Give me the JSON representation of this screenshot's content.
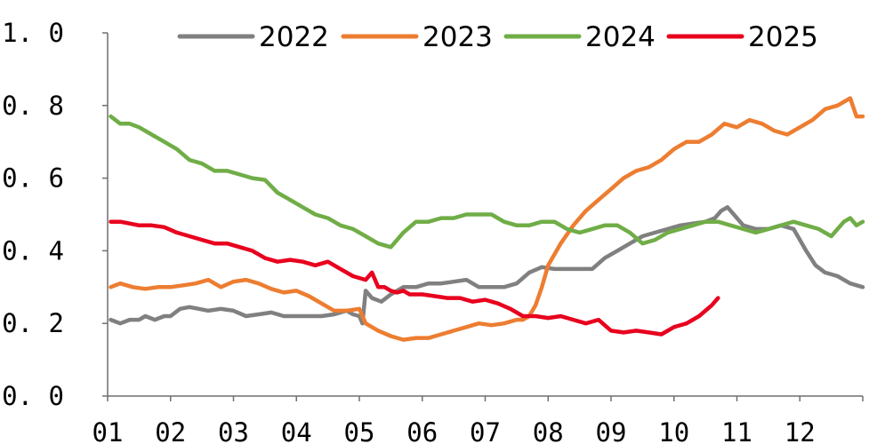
{
  "chart_data": {
    "type": "line",
    "title": "",
    "xlabel": "",
    "ylabel": "",
    "x_tick_labels": [
      "01",
      "02",
      "03",
      "04",
      "05",
      "06",
      "07",
      "08",
      "09",
      "10",
      "11",
      "12"
    ],
    "y_tick_labels": [
      "0. 0",
      "0. 2",
      "0. 4",
      "0. 6",
      "0. 8",
      "1. 0"
    ],
    "xlim": [
      0,
      12
    ],
    "ylim": [
      0.0,
      1.0
    ],
    "grid": false,
    "legend_position": "top",
    "series": [
      {
        "name": "2022",
        "color": "#808080",
        "x": [
          0.05,
          0.2,
          0.35,
          0.5,
          0.6,
          0.75,
          0.9,
          1.0,
          1.15,
          1.3,
          1.45,
          1.6,
          1.8,
          2.0,
          2.2,
          2.4,
          2.6,
          2.8,
          3.0,
          3.2,
          3.4,
          3.6,
          3.8,
          3.9,
          4.0,
          4.05,
          4.1,
          4.2,
          4.35,
          4.5,
          4.7,
          4.9,
          5.1,
          5.3,
          5.5,
          5.7,
          5.9,
          6.1,
          6.3,
          6.5,
          6.7,
          6.9,
          7.1,
          7.3,
          7.5,
          7.7,
          7.9,
          8.1,
          8.3,
          8.5,
          8.7,
          8.9,
          9.1,
          9.3,
          9.5,
          9.65,
          9.75,
          9.85,
          9.95,
          10.1,
          10.3,
          10.5,
          10.7,
          10.9,
          11.0,
          11.1,
          11.25,
          11.4,
          11.6,
          11.8,
          12.0
        ],
        "y": [
          0.21,
          0.2,
          0.21,
          0.21,
          0.22,
          0.21,
          0.22,
          0.22,
          0.24,
          0.245,
          0.24,
          0.235,
          0.24,
          0.235,
          0.22,
          0.225,
          0.23,
          0.22,
          0.22,
          0.22,
          0.22,
          0.225,
          0.235,
          0.225,
          0.22,
          0.2,
          0.29,
          0.27,
          0.26,
          0.28,
          0.3,
          0.3,
          0.31,
          0.31,
          0.315,
          0.32,
          0.3,
          0.3,
          0.3,
          0.31,
          0.34,
          0.355,
          0.35,
          0.35,
          0.35,
          0.35,
          0.38,
          0.4,
          0.42,
          0.44,
          0.45,
          0.46,
          0.47,
          0.475,
          0.48,
          0.49,
          0.51,
          0.52,
          0.5,
          0.47,
          0.46,
          0.46,
          0.47,
          0.46,
          0.43,
          0.4,
          0.36,
          0.34,
          0.33,
          0.31,
          0.3
        ]
      },
      {
        "name": "2023",
        "color": "#ED7D31",
        "x": [
          0.05,
          0.2,
          0.4,
          0.6,
          0.8,
          1.0,
          1.2,
          1.4,
          1.6,
          1.8,
          2.0,
          2.2,
          2.4,
          2.6,
          2.8,
          3.0,
          3.2,
          3.4,
          3.6,
          3.8,
          4.0,
          4.1,
          4.3,
          4.5,
          4.7,
          4.9,
          5.1,
          5.3,
          5.5,
          5.7,
          5.9,
          6.1,
          6.3,
          6.5,
          6.6,
          6.7,
          6.8,
          6.9,
          7.0,
          7.2,
          7.4,
          7.6,
          7.8,
          8.0,
          8.2,
          8.4,
          8.6,
          8.8,
          9.0,
          9.2,
          9.4,
          9.6,
          9.8,
          10.0,
          10.2,
          10.4,
          10.6,
          10.8,
          11.0,
          11.2,
          11.4,
          11.6,
          11.8,
          11.9,
          12.0
        ],
        "y": [
          0.3,
          0.31,
          0.3,
          0.295,
          0.3,
          0.3,
          0.305,
          0.31,
          0.32,
          0.3,
          0.315,
          0.32,
          0.31,
          0.295,
          0.285,
          0.29,
          0.275,
          0.255,
          0.235,
          0.235,
          0.24,
          0.2,
          0.18,
          0.165,
          0.155,
          0.16,
          0.16,
          0.17,
          0.18,
          0.19,
          0.2,
          0.195,
          0.2,
          0.21,
          0.21,
          0.22,
          0.25,
          0.3,
          0.36,
          0.42,
          0.47,
          0.51,
          0.54,
          0.57,
          0.6,
          0.62,
          0.63,
          0.65,
          0.68,
          0.7,
          0.7,
          0.72,
          0.75,
          0.74,
          0.76,
          0.75,
          0.73,
          0.72,
          0.74,
          0.76,
          0.79,
          0.8,
          0.82,
          0.77,
          0.77
        ]
      },
      {
        "name": "2024",
        "color": "#70AD47",
        "x": [
          0.05,
          0.2,
          0.35,
          0.5,
          0.7,
          0.9,
          1.1,
          1.3,
          1.5,
          1.7,
          1.9,
          2.1,
          2.3,
          2.5,
          2.7,
          2.9,
          3.1,
          3.3,
          3.5,
          3.7,
          3.9,
          4.1,
          4.3,
          4.5,
          4.7,
          4.9,
          5.1,
          5.3,
          5.5,
          5.7,
          5.9,
          6.1,
          6.3,
          6.5,
          6.7,
          6.9,
          7.1,
          7.3,
          7.5,
          7.7,
          7.9,
          8.1,
          8.3,
          8.5,
          8.7,
          8.9,
          9.1,
          9.3,
          9.5,
          9.7,
          9.9,
          10.1,
          10.3,
          10.5,
          10.7,
          10.9,
          11.1,
          11.3,
          11.5,
          11.7,
          11.8,
          11.9,
          12.0
        ],
        "y": [
          0.77,
          0.75,
          0.75,
          0.74,
          0.72,
          0.7,
          0.68,
          0.65,
          0.64,
          0.62,
          0.62,
          0.61,
          0.6,
          0.595,
          0.56,
          0.54,
          0.52,
          0.5,
          0.49,
          0.47,
          0.46,
          0.44,
          0.42,
          0.41,
          0.45,
          0.48,
          0.48,
          0.49,
          0.49,
          0.5,
          0.5,
          0.5,
          0.48,
          0.47,
          0.47,
          0.48,
          0.48,
          0.46,
          0.45,
          0.46,
          0.47,
          0.47,
          0.45,
          0.42,
          0.43,
          0.45,
          0.46,
          0.47,
          0.48,
          0.48,
          0.47,
          0.46,
          0.45,
          0.46,
          0.47,
          0.48,
          0.47,
          0.46,
          0.44,
          0.48,
          0.49,
          0.47,
          0.48
        ]
      },
      {
        "name": "2025",
        "color": "#E8001E",
        "x": [
          0.05,
          0.2,
          0.35,
          0.5,
          0.7,
          0.9,
          1.1,
          1.3,
          1.5,
          1.7,
          1.9,
          2.1,
          2.3,
          2.5,
          2.7,
          2.9,
          3.1,
          3.3,
          3.5,
          3.7,
          3.9,
          4.1,
          4.2,
          4.3,
          4.4,
          4.5,
          4.6,
          4.7,
          4.8,
          5.0,
          5.2,
          5.4,
          5.6,
          5.8,
          6.0,
          6.2,
          6.4,
          6.6,
          6.8,
          7.0,
          7.2,
          7.4,
          7.6,
          7.8,
          8.0,
          8.2,
          8.4,
          8.6,
          8.8,
          9.0,
          9.2,
          9.4,
          9.6,
          9.7
        ],
        "y": [
          0.48,
          0.48,
          0.475,
          0.47,
          0.47,
          0.465,
          0.45,
          0.44,
          0.43,
          0.42,
          0.42,
          0.41,
          0.4,
          0.38,
          0.37,
          0.375,
          0.37,
          0.36,
          0.37,
          0.35,
          0.33,
          0.32,
          0.34,
          0.3,
          0.3,
          0.29,
          0.285,
          0.29,
          0.28,
          0.28,
          0.275,
          0.27,
          0.27,
          0.26,
          0.265,
          0.255,
          0.24,
          0.22,
          0.22,
          0.215,
          0.22,
          0.21,
          0.2,
          0.21,
          0.18,
          0.175,
          0.18,
          0.175,
          0.17,
          0.19,
          0.2,
          0.22,
          0.25,
          0.27
        ]
      }
    ]
  }
}
